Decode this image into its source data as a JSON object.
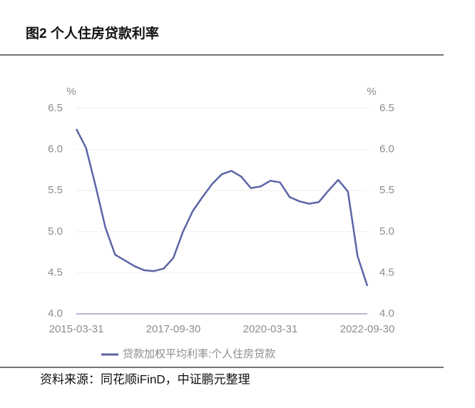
{
  "title": "图2 个人住房贷款利率",
  "source": "资料来源：同花顺iFinD，中证鹏元整理",
  "chart_data": {
    "type": "line",
    "y_unit": "%",
    "y2_unit": "%",
    "categories": [
      "2015-03-31",
      null,
      null,
      null,
      null,
      null,
      null,
      null,
      null,
      null,
      "2017-09-30",
      null,
      null,
      null,
      null,
      null,
      null,
      null,
      null,
      null,
      "2020-03-31",
      null,
      null,
      null,
      null,
      null,
      null,
      null,
      null,
      null,
      "2022-09-30"
    ],
    "series": [
      {
        "name": "贷款加权平均利率:个人住房贷款",
        "color": "#5b65a6",
        "values": [
          6.25,
          6.02,
          5.55,
          5.05,
          4.72,
          4.65,
          4.58,
          4.53,
          4.52,
          4.55,
          4.68,
          5.0,
          5.25,
          5.42,
          5.58,
          5.7,
          5.74,
          5.67,
          5.53,
          5.55,
          5.62,
          5.6,
          5.42,
          5.37,
          5.34,
          5.36,
          5.5,
          5.63,
          5.49,
          4.7,
          4.34
        ]
      }
    ],
    "ylim": [
      4.0,
      6.5
    ],
    "yticks": [
      {
        "value": 4.0,
        "label": "4.0"
      },
      4.5,
      {
        "value": 5.0,
        "label": "5.0"
      },
      5.5,
      {
        "value": 6.0,
        "label": "6.0"
      },
      6.5
    ],
    "y2lim": [
      4.0,
      6.5
    ],
    "y2ticks": [
      {
        "value": 4.0,
        "label": "4.0"
      },
      4.5,
      {
        "value": 5.0,
        "label": "5.0"
      },
      5.5,
      {
        "value": 6.0,
        "label": "6.0"
      },
      6.5
    ],
    "grid": true
  }
}
